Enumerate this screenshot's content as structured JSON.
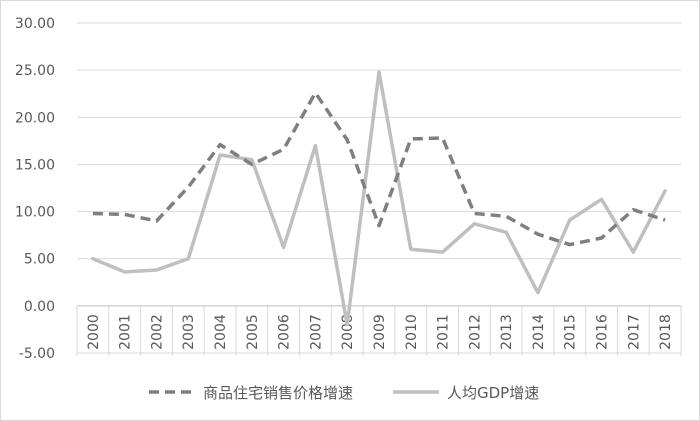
{
  "chart_data": {
    "type": "line",
    "title": "",
    "xlabel": "",
    "ylabel": "",
    "categories": [
      "2000",
      "2001",
      "2002",
      "2003",
      "2004",
      "2005",
      "2006",
      "2007",
      "2008",
      "2009",
      "2010",
      "2011",
      "2012",
      "2013",
      "2014",
      "2015",
      "2016",
      "2017",
      "2018"
    ],
    "ylim": [
      -5,
      30
    ],
    "yticks": [
      "-5.00",
      "0.00",
      "5.00",
      "10.00",
      "15.00",
      "20.00",
      "25.00",
      "30.00"
    ],
    "grid": "horizontal",
    "legend_position": "bottom",
    "series": [
      {
        "name": "商品住宅销售价格增速",
        "style": "dashed",
        "color": "#7f7f7f",
        "values": [
          9.8,
          9.7,
          9.0,
          12.6,
          17.1,
          15.0,
          16.6,
          22.6,
          17.6,
          8.5,
          17.7,
          17.8,
          9.8,
          9.5,
          7.6,
          6.5,
          7.2,
          10.2,
          9.1
        ]
      },
      {
        "name": "人均GDP增速",
        "style": "solid",
        "color": "#bfbfbf",
        "values": [
          5.0,
          3.6,
          3.8,
          5.0,
          16.0,
          15.5,
          6.2,
          17.0,
          -2.0,
          24.8,
          6.0,
          5.7,
          8.7,
          7.8,
          1.4,
          9.1,
          11.3,
          5.7,
          12.2
        ]
      }
    ]
  }
}
